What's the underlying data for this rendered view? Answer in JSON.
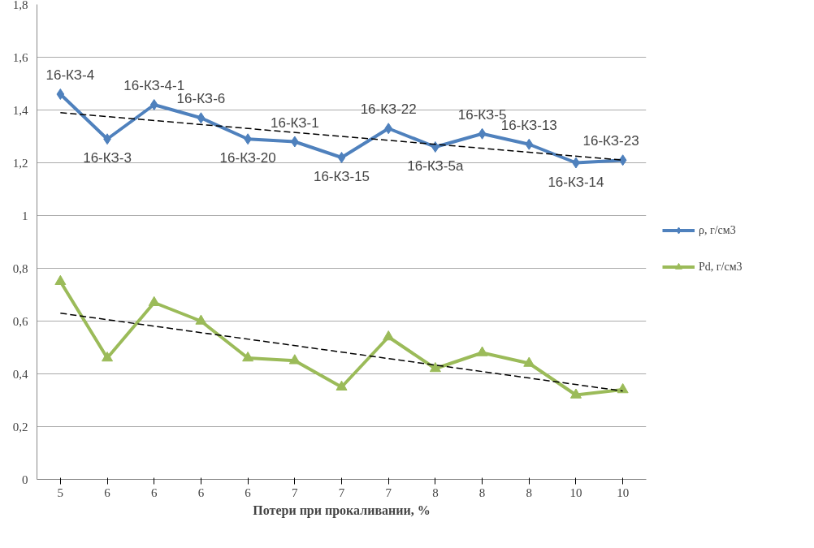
{
  "chart_data": {
    "type": "line",
    "xlabel": "Потери при прокаливании, %",
    "categories": [
      "5",
      "6",
      "6",
      "6",
      "6",
      "7",
      "7",
      "7",
      "8",
      "8",
      "8",
      "10",
      "10"
    ],
    "ylim": [
      0,
      1.8
    ],
    "yticks": [
      {
        "value": 0,
        "label": "0"
      },
      {
        "value": 0.2,
        "label": "0,2"
      },
      {
        "value": 0.4,
        "label": "0,4"
      },
      {
        "value": 0.6,
        "label": "0,6"
      },
      {
        "value": 0.8,
        "label": "0,8"
      },
      {
        "value": 1,
        "label": "1"
      },
      {
        "value": 1.2,
        "label": "1,2"
      },
      {
        "value": 1.4,
        "label": "1,4"
      },
      {
        "value": 1.6,
        "label": "1,6"
      },
      {
        "value": 1.8,
        "label": "1,8"
      }
    ],
    "grid": "y",
    "legend": "right",
    "series": [
      {
        "name": "ρ, г/см3",
        "color": "#4f81bd",
        "marker": "diamond",
        "values": [
          1.46,
          1.29,
          1.42,
          1.37,
          1.29,
          1.28,
          1.22,
          1.33,
          1.26,
          1.31,
          1.27,
          1.2,
          1.21
        ]
      },
      {
        "name": "Pd, г/см3",
        "color": "#9bbb59",
        "marker": "triangle",
        "values": [
          0.75,
          0.46,
          0.67,
          0.6,
          0.46,
          0.45,
          0.35,
          0.54,
          0.42,
          0.48,
          0.44,
          0.32,
          0.34
        ]
      },
      {
        "color": "#000000",
        "marker": "none",
        "line_style": "dashed",
        "values": [
          1.39,
          null,
          null,
          null,
          null,
          null,
          null,
          null,
          null,
          null,
          null,
          null,
          1.21
        ]
      },
      {
        "color": "#000000",
        "marker": "none",
        "line_style": "dashed",
        "values": [
          0.63,
          null,
          null,
          null,
          null,
          null,
          null,
          null,
          null,
          null,
          null,
          null,
          0.335
        ]
      }
    ],
    "annotations": [
      "16-КЗ-4",
      "16-КЗ-3",
      "16-КЗ-4-1",
      "16-КЗ-6",
      "16-КЗ-20",
      "16-КЗ-1",
      "16-КЗ-15",
      "16-КЗ-22",
      "16-КЗ-5а",
      "16-КЗ-5",
      "16-КЗ-13",
      "16-КЗ-14",
      "16-КЗ-23"
    ]
  }
}
